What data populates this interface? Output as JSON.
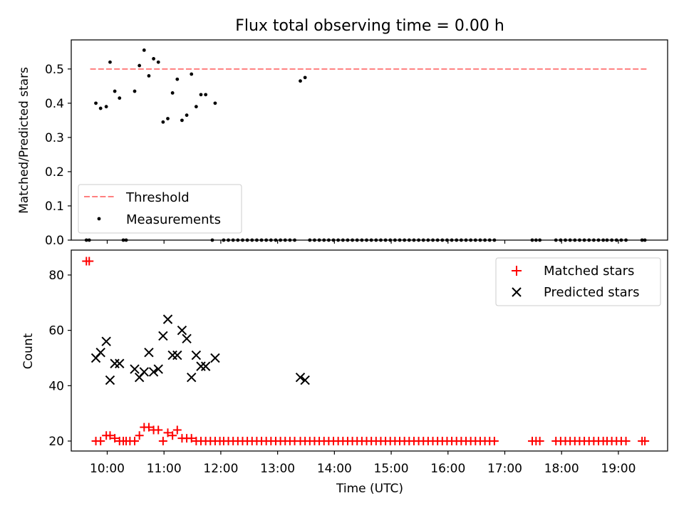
{
  "title": "Flux total observing time = 0.00 h",
  "colors": {
    "threshold": "#ff7f7f",
    "measurement": "#000000",
    "matched": "#ff0000",
    "predicted": "#000000"
  },
  "chart_data": [
    {
      "type": "scatter",
      "ylabel": "Matched/Predicted stars",
      "xlabel": "",
      "xlim": [
        "09:22",
        "19:52"
      ],
      "ylim": [
        0,
        0.585
      ],
      "yticks": [
        "0.0",
        "0.1",
        "0.2",
        "0.3",
        "0.4",
        "0.5"
      ],
      "grid": false,
      "legend_position": "lower-left",
      "legend": [
        {
          "label": "Threshold",
          "style": "dashed-line",
          "color": "#ff7f7f"
        },
        {
          "label": "Measurements",
          "style": "dot",
          "color": "#000000"
        }
      ],
      "threshold": {
        "value": 0.5,
        "x_range": [
          "09:42",
          "19:30"
        ]
      },
      "measurements_nonzero": [
        [
          "09:48",
          0.4
        ],
        [
          "09:53",
          0.385
        ],
        [
          "09:59",
          0.39
        ],
        [
          "10:03",
          0.52
        ],
        [
          "10:08",
          0.435
        ],
        [
          "10:13",
          0.415
        ],
        [
          "10:29",
          0.435
        ],
        [
          "10:34",
          0.51
        ],
        [
          "10:39",
          0.555
        ],
        [
          "10:44",
          0.48
        ],
        [
          "10:49",
          0.53
        ],
        [
          "10:54",
          0.52
        ],
        [
          "10:59",
          0.345
        ],
        [
          "11:04",
          0.355
        ],
        [
          "11:09",
          0.43
        ],
        [
          "11:14",
          0.47
        ],
        [
          "11:19",
          0.35
        ],
        [
          "11:24",
          0.365
        ],
        [
          "11:29",
          0.485
        ],
        [
          "11:34",
          0.39
        ],
        [
          "11:39",
          0.425
        ],
        [
          "11:44",
          0.425
        ],
        [
          "11:54",
          0.4
        ],
        [
          "13:24",
          0.465
        ],
        [
          "13:29",
          0.475
        ]
      ],
      "measurements_zero_times": [
        "09:38",
        "09:41",
        "10:17",
        "10:20",
        "11:51",
        "12:03",
        "12:08",
        "12:13",
        "12:18",
        "12:23",
        "12:28",
        "12:33",
        "12:38",
        "12:43",
        "12:48",
        "12:53",
        "12:58",
        "13:03",
        "13:08",
        "13:13",
        "13:18",
        "13:34",
        "13:39",
        "13:44",
        "13:49",
        "13:54",
        "13:59",
        "14:04",
        "14:09",
        "14:14",
        "14:19",
        "14:24",
        "14:29",
        "14:34",
        "14:39",
        "14:44",
        "14:49",
        "14:54",
        "14:59",
        "15:04",
        "15:09",
        "15:14",
        "15:19",
        "15:24",
        "15:29",
        "15:34",
        "15:39",
        "15:44",
        "15:49",
        "15:54",
        "15:59",
        "16:04",
        "16:09",
        "16:14",
        "16:19",
        "16:24",
        "16:29",
        "16:34",
        "16:39",
        "16:44",
        "16:49",
        "17:29",
        "17:33",
        "17:37",
        "17:54",
        "17:59",
        "18:04",
        "18:09",
        "18:14",
        "18:19",
        "18:24",
        "18:29",
        "18:34",
        "18:39",
        "18:44",
        "18:48",
        "18:53",
        "18:58",
        "19:03",
        "19:08",
        "19:25",
        "19:28"
      ]
    },
    {
      "type": "scatter",
      "ylabel": "Count",
      "xlabel": "Time (UTC)",
      "xlim": [
        "09:22",
        "19:52"
      ],
      "ylim": [
        16.4,
        89
      ],
      "yticks": [
        "20",
        "40",
        "60",
        "80"
      ],
      "xticks": [
        "10:00",
        "11:00",
        "12:00",
        "13:00",
        "14:00",
        "15:00",
        "16:00",
        "17:00",
        "18:00",
        "19:00"
      ],
      "grid": false,
      "legend_position": "upper-right",
      "series": [
        {
          "name": "Matched stars",
          "marker": "plus",
          "color": "#ff0000",
          "points": [
            [
              "09:38",
              85
            ],
            [
              "09:41",
              85
            ],
            [
              "09:48",
              20
            ],
            [
              "09:53",
              20
            ],
            [
              "09:59",
              22
            ],
            [
              "10:03",
              22
            ],
            [
              "10:08",
              21
            ],
            [
              "10:13",
              20
            ],
            [
              "10:17",
              20
            ],
            [
              "10:20",
              20
            ],
            [
              "10:24",
              20
            ],
            [
              "10:29",
              20
            ],
            [
              "10:34",
              22
            ],
            [
              "10:39",
              25
            ],
            [
              "10:44",
              25
            ],
            [
              "10:49",
              24
            ],
            [
              "10:54",
              24
            ],
            [
              "10:59",
              20
            ],
            [
              "11:04",
              23
            ],
            [
              "11:09",
              22
            ],
            [
              "11:14",
              24
            ],
            [
              "11:19",
              21
            ],
            [
              "11:24",
              21
            ],
            [
              "11:29",
              21
            ],
            [
              "11:34",
              20
            ],
            [
              "11:39",
              20
            ],
            [
              "11:44",
              20
            ],
            [
              "11:49",
              20
            ],
            [
              "11:54",
              20
            ],
            [
              "11:59",
              20
            ],
            [
              "12:03",
              20
            ],
            [
              "12:08",
              20
            ],
            [
              "12:13",
              20
            ],
            [
              "12:18",
              20
            ],
            [
              "12:23",
              20
            ],
            [
              "12:28",
              20
            ],
            [
              "12:33",
              20
            ],
            [
              "12:38",
              20
            ],
            [
              "12:43",
              20
            ],
            [
              "12:48",
              20
            ],
            [
              "12:53",
              20
            ],
            [
              "12:58",
              20
            ],
            [
              "13:03",
              20
            ],
            [
              "13:08",
              20
            ],
            [
              "13:13",
              20
            ],
            [
              "13:18",
              20
            ],
            [
              "13:24",
              20
            ],
            [
              "13:29",
              20
            ],
            [
              "13:34",
              20
            ],
            [
              "13:39",
              20
            ],
            [
              "13:44",
              20
            ],
            [
              "13:49",
              20
            ],
            [
              "13:54",
              20
            ],
            [
              "13:59",
              20
            ],
            [
              "14:04",
              20
            ],
            [
              "14:09",
              20
            ],
            [
              "14:14",
              20
            ],
            [
              "14:19",
              20
            ],
            [
              "14:24",
              20
            ],
            [
              "14:29",
              20
            ],
            [
              "14:34",
              20
            ],
            [
              "14:39",
              20
            ],
            [
              "14:44",
              20
            ],
            [
              "14:49",
              20
            ],
            [
              "14:54",
              20
            ],
            [
              "14:59",
              20
            ],
            [
              "15:04",
              20
            ],
            [
              "15:09",
              20
            ],
            [
              "15:14",
              20
            ],
            [
              "15:19",
              20
            ],
            [
              "15:24",
              20
            ],
            [
              "15:29",
              20
            ],
            [
              "15:34",
              20
            ],
            [
              "15:39",
              20
            ],
            [
              "15:44",
              20
            ],
            [
              "15:49",
              20
            ],
            [
              "15:54",
              20
            ],
            [
              "15:59",
              20
            ],
            [
              "16:04",
              20
            ],
            [
              "16:09",
              20
            ],
            [
              "16:14",
              20
            ],
            [
              "16:19",
              20
            ],
            [
              "16:24",
              20
            ],
            [
              "16:29",
              20
            ],
            [
              "16:34",
              20
            ],
            [
              "16:39",
              20
            ],
            [
              "16:44",
              20
            ],
            [
              "16:49",
              20
            ],
            [
              "17:29",
              20
            ],
            [
              "17:33",
              20
            ],
            [
              "17:37",
              20
            ],
            [
              "17:54",
              20
            ],
            [
              "17:59",
              20
            ],
            [
              "18:04",
              20
            ],
            [
              "18:09",
              20
            ],
            [
              "18:14",
              20
            ],
            [
              "18:19",
              20
            ],
            [
              "18:24",
              20
            ],
            [
              "18:29",
              20
            ],
            [
              "18:34",
              20
            ],
            [
              "18:39",
              20
            ],
            [
              "18:44",
              20
            ],
            [
              "18:48",
              20
            ],
            [
              "18:53",
              20
            ],
            [
              "18:58",
              20
            ],
            [
              "19:03",
              20
            ],
            [
              "19:08",
              20
            ],
            [
              "19:25",
              20
            ],
            [
              "19:28",
              20
            ]
          ]
        },
        {
          "name": "Predicted stars",
          "marker": "x",
          "color": "#000000",
          "points": [
            [
              "09:48",
              50
            ],
            [
              "09:53",
              52
            ],
            [
              "09:59",
              56
            ],
            [
              "10:03",
              42
            ],
            [
              "10:08",
              48
            ],
            [
              "10:13",
              48
            ],
            [
              "10:29",
              46
            ],
            [
              "10:34",
              43
            ],
            [
              "10:39",
              45
            ],
            [
              "10:44",
              52
            ],
            [
              "10:49",
              45
            ],
            [
              "10:54",
              46
            ],
            [
              "10:59",
              58
            ],
            [
              "11:04",
              64
            ],
            [
              "11:09",
              51
            ],
            [
              "11:14",
              51
            ],
            [
              "11:19",
              60
            ],
            [
              "11:24",
              57
            ],
            [
              "11:29",
              43
            ],
            [
              "11:34",
              51
            ],
            [
              "11:39",
              47
            ],
            [
              "11:44",
              47
            ],
            [
              "11:54",
              50
            ],
            [
              "13:24",
              43
            ],
            [
              "13:29",
              42
            ]
          ]
        }
      ]
    }
  ]
}
